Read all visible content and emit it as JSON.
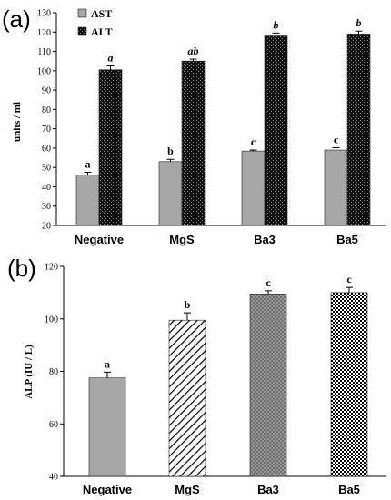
{
  "chart_data": [
    {
      "panel": "(a)",
      "type": "bar",
      "ylabel": "units / ml",
      "ylim": [
        20,
        130
      ],
      "yticks": [
        20,
        30,
        40,
        50,
        60,
        70,
        80,
        90,
        100,
        110,
        120,
        130
      ],
      "categories": [
        "Negative",
        "MgS",
        "Ba3",
        "Ba5"
      ],
      "legend_position": "top-left",
      "series": [
        {
          "name": "AST",
          "color": "#a6a6a6",
          "pattern": "solid",
          "values": [
            46,
            53,
            58.5,
            59
          ],
          "errors": [
            1.5,
            1.2,
            0.5,
            1.2
          ],
          "labels": [
            "a",
            "b",
            "c",
            "c"
          ],
          "label_italic": false
        },
        {
          "name": "ALT",
          "color": "#1a1a1a",
          "pattern": "dark-texture",
          "values": [
            100.5,
            105,
            118,
            119
          ],
          "errors": [
            2,
            1,
            1.5,
            1.5
          ],
          "labels": [
            "a",
            "ab",
            "b",
            "b"
          ],
          "label_italic": true
        }
      ]
    },
    {
      "panel": "(b)",
      "type": "bar",
      "ylabel": "ALP (IU / L)",
      "ylim": [
        40,
        120
      ],
      "yticks": [
        40,
        60,
        80,
        100,
        120
      ],
      "categories": [
        "Negative",
        "MgS",
        "Ba3",
        "Ba5"
      ],
      "values": [
        77.5,
        99.5,
        109.5,
        110
      ],
      "errors": [
        2.2,
        2.8,
        1.2,
        2
      ],
      "labels": [
        "a",
        "b",
        "c",
        "c"
      ],
      "bar_styles": [
        "solid-gray",
        "diagonal-hatch",
        "dots",
        "checker"
      ]
    }
  ]
}
